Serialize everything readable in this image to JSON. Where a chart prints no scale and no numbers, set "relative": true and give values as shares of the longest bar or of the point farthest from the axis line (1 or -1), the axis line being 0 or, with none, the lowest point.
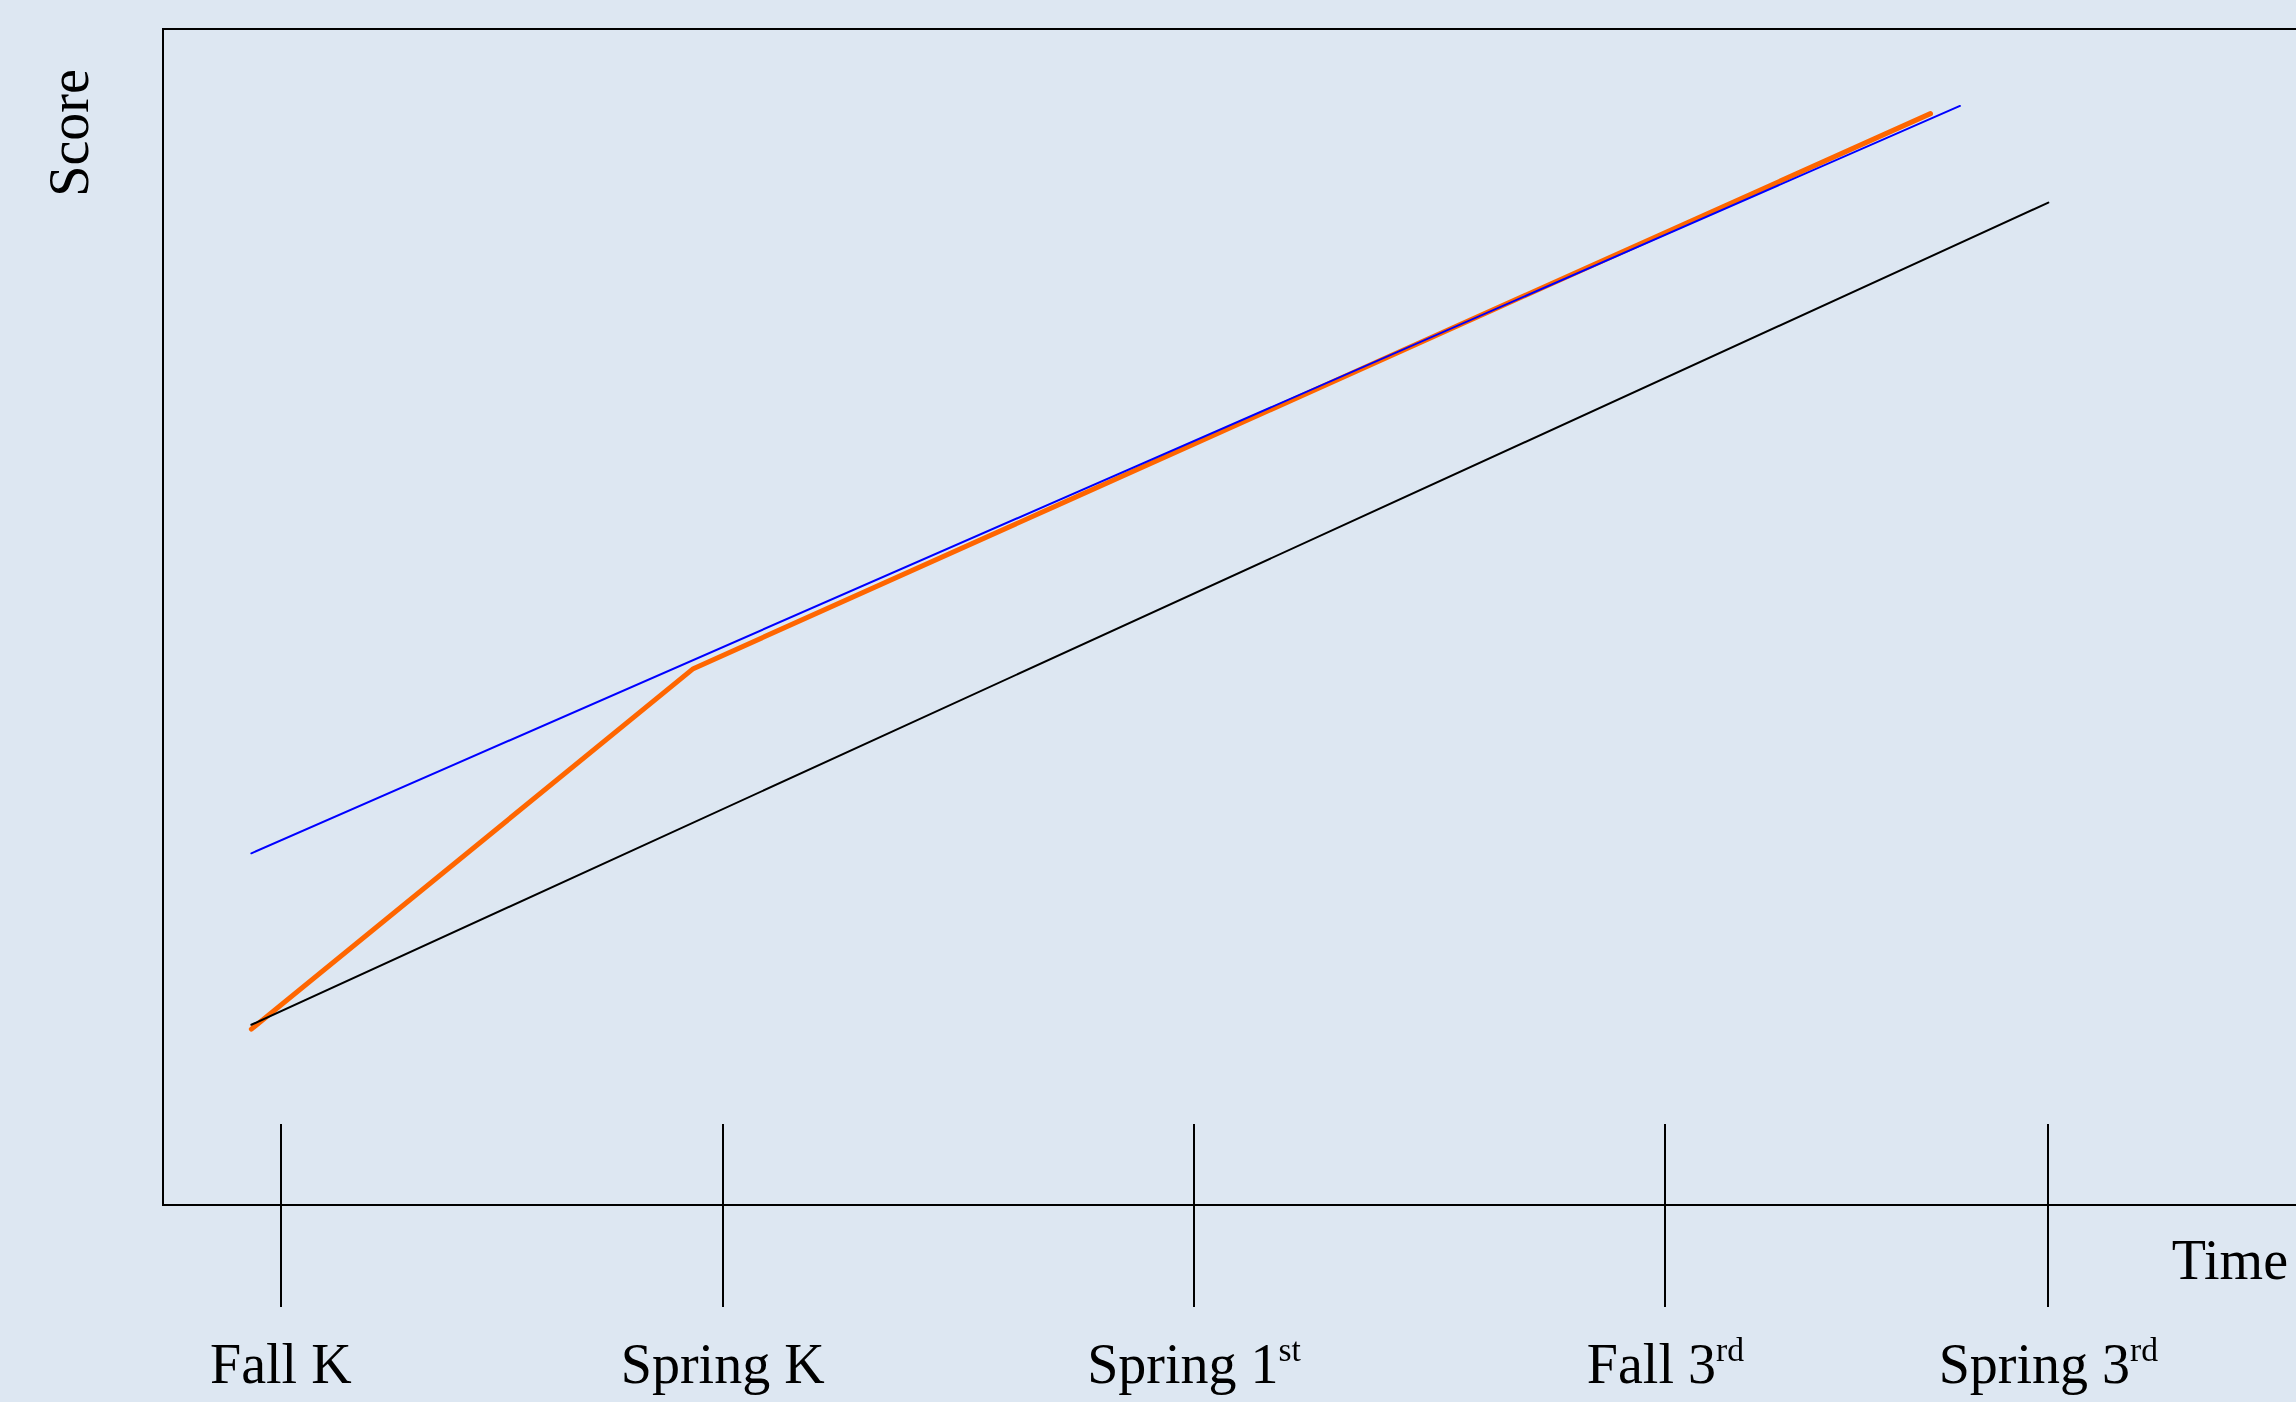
{
  "chart_data": {
    "type": "line",
    "relative": true,
    "xlabel": "Time",
    "ylabel": "Score",
    "categories": [
      null,
      null,
      null,
      null,
      "Fall K",
      null,
      null,
      null,
      null,
      null,
      null,
      null,
      null,
      null,
      null,
      null,
      null,
      null,
      null,
      "Spring K",
      null,
      null,
      null,
      null,
      null,
      null,
      null,
      null,
      null,
      null,
      null,
      null,
      null,
      null,
      null,
      "Spring 1$^{st}$",
      null,
      null,
      null,
      null,
      null,
      null,
      null,
      null,
      null,
      null,
      null,
      null,
      null,
      null,
      null,
      "Fall 3$^{rd}$",
      null,
      null,
      null,
      null,
      null,
      null,
      null,
      null,
      null,
      null,
      null,
      null,
      "Spring 3$^{rd}$",
      null,
      null,
      null,
      null,
      null,
      null,
      null,
      null
    ],
    "series": [
      {
        "color": "#0000ff",
        "values": [
          null,
          null,
          null,
          0.32,
          null,
          null,
          null,
          null,
          null,
          null,
          null,
          null,
          null,
          null,
          null,
          null,
          null,
          null,
          null,
          null,
          null,
          null,
          null,
          null,
          null,
          null,
          null,
          null,
          null,
          null,
          null,
          null,
          null,
          null,
          null,
          null,
          null,
          null,
          null,
          null,
          null,
          null,
          null,
          null,
          null,
          null,
          null,
          null,
          null,
          null,
          null,
          null,
          null,
          null,
          null,
          null,
          null,
          null,
          null,
          null,
          null,
          1,
          null,
          null,
          null,
          null,
          null,
          null,
          null,
          null,
          null,
          null,
          null
        ]
      },
      {
        "color": "#000000",
        "values": [
          null,
          null,
          null,
          0.164,
          null,
          null,
          null,
          null,
          null,
          null,
          null,
          null,
          null,
          null,
          null,
          null,
          null,
          null,
          null,
          null,
          null,
          null,
          null,
          null,
          null,
          null,
          null,
          null,
          null,
          null,
          null,
          null,
          null,
          null,
          null,
          null,
          null,
          null,
          null,
          null,
          null,
          null,
          null,
          null,
          null,
          null,
          null,
          null,
          null,
          null,
          null,
          null,
          null,
          null,
          null,
          null,
          null,
          null,
          null,
          null,
          null,
          null,
          null,
          null,
          0.912,
          null,
          null,
          null,
          null,
          null,
          null,
          null,
          null
        ]
      },
      {
        "color": "#ff6600",
        "values": [
          null,
          null,
          null,
          0.16,
          null,
          null,
          null,
          null,
          null,
          null,
          null,
          null,
          null,
          null,
          null,
          null,
          null,
          null,
          0.488,
          null,
          null,
          null,
          null,
          null,
          null,
          null,
          null,
          null,
          null,
          null,
          null,
          null,
          null,
          null,
          null,
          null,
          null,
          null,
          null,
          null,
          null,
          null,
          null,
          null,
          null,
          null,
          null,
          null,
          null,
          null,
          null,
          null,
          null,
          null,
          null,
          null,
          null,
          null,
          null,
          null,
          0.993,
          null,
          null,
          null,
          null,
          null,
          null,
          null,
          null,
          null,
          null,
          null,
          null
        ]
      }
    ],
    "legend": false,
    "marker": "none",
    "line_style": "solid"
  }
}
